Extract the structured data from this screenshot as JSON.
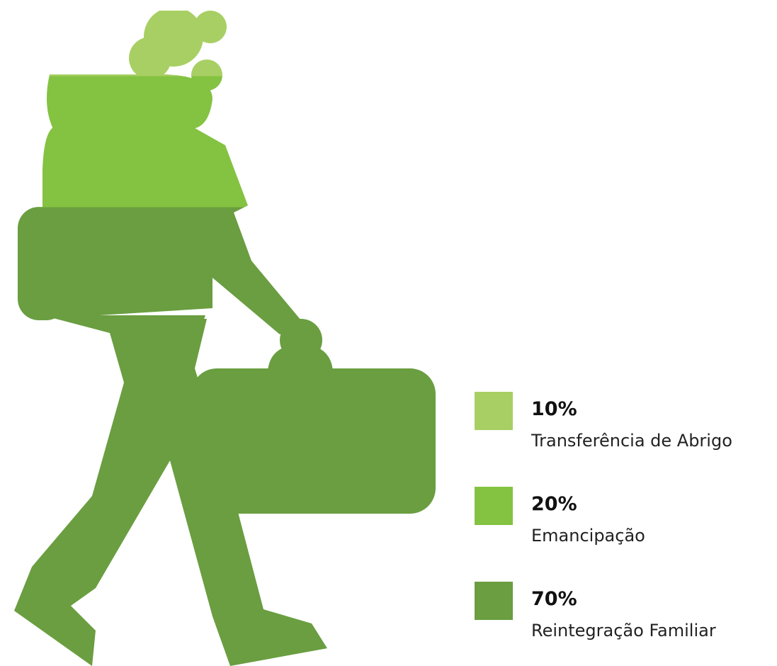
{
  "chart_data": {
    "type": "pictogram",
    "categories": [
      "Transferência de Abrigo",
      "Emancipação",
      "Reintegração Familiar"
    ],
    "values": [
      10,
      20,
      70
    ],
    "value_labels": [
      "10%",
      "20%",
      "70%"
    ],
    "colors": [
      "#a8cf63",
      "#84c241",
      "#6a9e40"
    ]
  }
}
